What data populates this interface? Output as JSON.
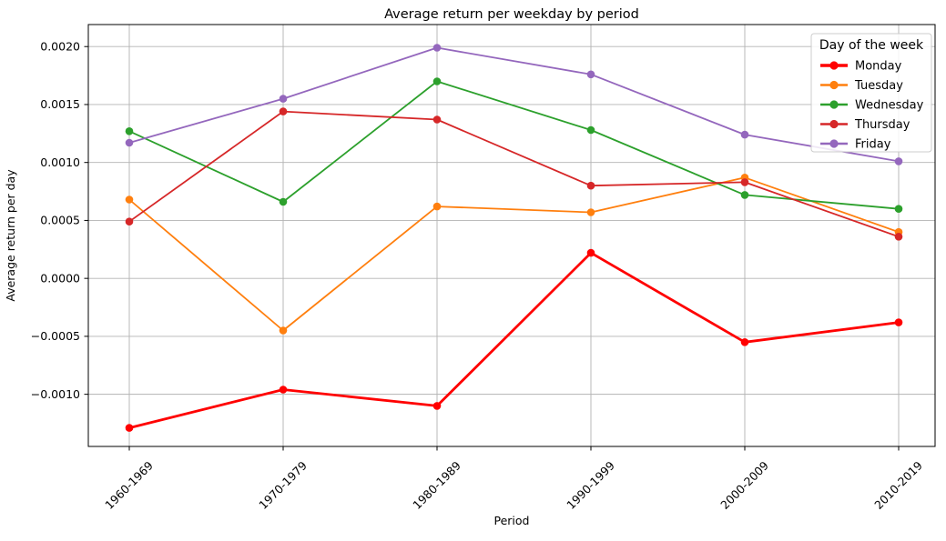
{
  "chart_data": {
    "type": "line",
    "title": "Average return per weekday by period",
    "xlabel": "Period",
    "ylabel": "Average return per day",
    "categories": [
      "1960-1969",
      "1970-1979",
      "1980-1989",
      "1990-1999",
      "2000-2009",
      "2010-2019"
    ],
    "series": [
      {
        "name": "Monday",
        "color": "#ff0000",
        "line_width": 2.8,
        "marker": "circle",
        "values": [
          -0.00129,
          -0.00096,
          -0.0011,
          0.00022,
          -0.00055,
          -0.00038
        ]
      },
      {
        "name": "Tuesday",
        "color": "#ff7f0e",
        "line_width": 1.8,
        "marker": "circle",
        "values": [
          0.00068,
          -0.00045,
          0.00062,
          0.00057,
          0.00087,
          0.0004
        ]
      },
      {
        "name": "Wednesday",
        "color": "#2ca02c",
        "line_width": 1.8,
        "marker": "circle",
        "values": [
          0.00127,
          0.00066,
          0.0017,
          0.00128,
          0.00072,
          0.0006
        ]
      },
      {
        "name": "Thursday",
        "color": "#d62728",
        "line_width": 1.8,
        "marker": "circle",
        "values": [
          0.00049,
          0.00144,
          0.00137,
          0.0008,
          0.00083,
          0.00036
        ]
      },
      {
        "name": "Friday",
        "color": "#9467bd",
        "line_width": 1.8,
        "marker": "circle",
        "values": [
          0.00117,
          0.00155,
          0.00199,
          0.00176,
          0.00124,
          0.00101
        ]
      }
    ],
    "legend": {
      "title": "Day of the week",
      "position": "upper right"
    },
    "y_ticks": [
      0.002,
      0.0015,
      0.001,
      0.0005,
      0.0,
      -0.0005,
      -0.001
    ],
    "ylim": [
      -0.00145,
      0.00219
    ],
    "x_tick_rotation": 45,
    "grid": true,
    "grid_color": "#b3b3b3",
    "spine_color": "#000000",
    "background_color": "#ffffff"
  }
}
